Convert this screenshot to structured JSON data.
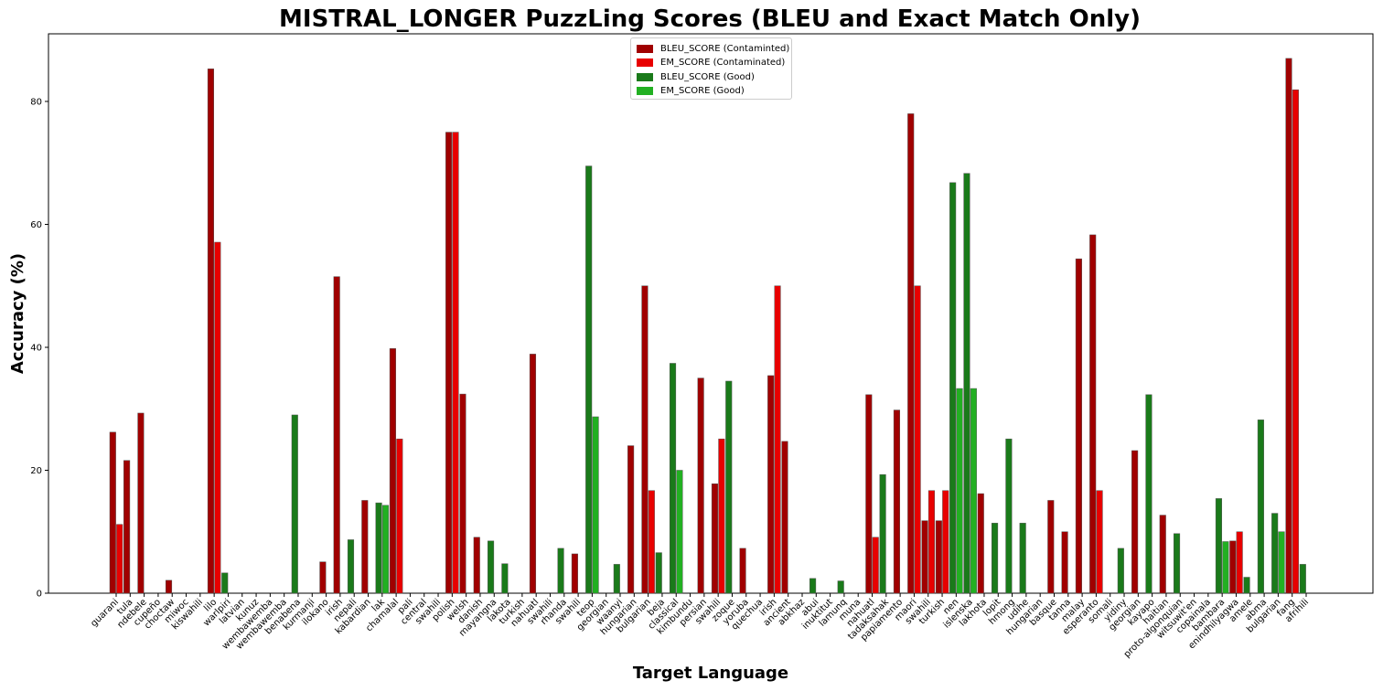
{
  "chart_data": {
    "type": "bar",
    "title": "MISTRAL_LONGER PuzzLing Scores (BLEU and Exact Match Only)",
    "xlabel": "Target Language",
    "ylabel": "Accuracy (%)",
    "ylim": [
      0,
      91
    ],
    "yticks": [
      0,
      20,
      40,
      60,
      80
    ],
    "grid": false,
    "legend_position": "top-center",
    "colors": {
      "bleu_contaminated": "#a00000",
      "em_contaminated": "#e80000",
      "bleu_good": "#1a7a1a",
      "em_good": "#22b022"
    },
    "legend": [
      {
        "label": "BLEU_SCORE (Contaminted)",
        "color": "#a00000"
      },
      {
        "label": "EM_SCORE (Contaminated)",
        "color": "#e80000"
      },
      {
        "label": "BLEU_SCORE (Good)",
        "color": "#1a7a1a"
      },
      {
        "label": "EM_SCORE (Good)",
        "color": "#22b022"
      }
    ],
    "categories": [
      {
        "label": "guarani",
        "status": "contaminated",
        "bleu": 26.2,
        "em": 11.2
      },
      {
        "label": "tula",
        "status": "contaminated",
        "bleu": 21.6,
        "em": 0
      },
      {
        "label": "ndebele",
        "status": "contaminated",
        "bleu": 29.3,
        "em": 0
      },
      {
        "label": "cupeño",
        "status": "contaminated",
        "bleu": 0,
        "em": 0
      },
      {
        "label": "choctaw",
        "status": "contaminated",
        "bleu": 2.1,
        "em": 0
      },
      {
        "label": "miwoc",
        "status": "contaminated",
        "bleu": 0,
        "em": 0
      },
      {
        "label": "kiswahili",
        "status": "contaminated",
        "bleu": 0,
        "em": 0
      },
      {
        "label": "lilo",
        "status": "contaminated",
        "bleu": 85.3,
        "em": 57.1
      },
      {
        "label": "warlpiri",
        "status": "good",
        "bleu": 3.3,
        "em": 0
      },
      {
        "label": "latvian",
        "status": "good",
        "bleu": 0,
        "em": 0
      },
      {
        "label": "kunuz",
        "status": "good",
        "bleu": 0,
        "em": 0
      },
      {
        "label": "wembawemba",
        "status": "good",
        "bleu": 0,
        "em": 0
      },
      {
        "label": "wembawemba",
        "status": "good",
        "bleu": 0,
        "em": 0
      },
      {
        "label": "benabena",
        "status": "good",
        "bleu": 29.0,
        "em": 0
      },
      {
        "label": "kurmanji",
        "status": "contaminated",
        "bleu": 0,
        "em": 0
      },
      {
        "label": "ilokano",
        "status": "contaminated",
        "bleu": 5.1,
        "em": 0
      },
      {
        "label": "irish",
        "status": "contaminated",
        "bleu": 51.5,
        "em": 0
      },
      {
        "label": "nepali",
        "status": "good",
        "bleu": 8.7,
        "em": 0
      },
      {
        "label": "kabardian",
        "status": "contaminated",
        "bleu": 15.1,
        "em": 0
      },
      {
        "label": "lak",
        "status": "good",
        "bleu": 14.7,
        "em": 14.3
      },
      {
        "label": "chamalal",
        "status": "contaminated",
        "bleu": 39.8,
        "em": 25.1
      },
      {
        "label": "pali",
        "status": "contaminated",
        "bleu": 0,
        "em": 0
      },
      {
        "label": "central",
        "status": "contaminated",
        "bleu": 0,
        "em": 0
      },
      {
        "label": "swahili",
        "status": "contaminated",
        "bleu": 0,
        "em": 0
      },
      {
        "label": "polish",
        "status": "contaminated",
        "bleu": 75.0,
        "em": 75.0
      },
      {
        "label": "welsh",
        "status": "contaminated",
        "bleu": 32.4,
        "em": 0
      },
      {
        "label": "danish",
        "status": "contaminated",
        "bleu": 9.1,
        "em": 0
      },
      {
        "label": "mayangna",
        "status": "good",
        "bleu": 8.5,
        "em": 0
      },
      {
        "label": "lakota",
        "status": "good",
        "bleu": 4.8,
        "em": 0
      },
      {
        "label": "turkish",
        "status": "contaminated",
        "bleu": 0,
        "em": 0
      },
      {
        "label": "nahuatl",
        "status": "contaminated",
        "bleu": 38.9,
        "em": 0
      },
      {
        "label": "swahili",
        "status": "contaminated",
        "bleu": 0,
        "em": 0
      },
      {
        "label": "rhanda",
        "status": "good",
        "bleu": 7.3,
        "em": 0
      },
      {
        "label": "swahili",
        "status": "contaminated",
        "bleu": 6.4,
        "em": 0
      },
      {
        "label": "teop",
        "status": "good",
        "bleu": 69.5,
        "em": 28.7
      },
      {
        "label": "georgian",
        "status": "good",
        "bleu": 0,
        "em": 0
      },
      {
        "label": "waanyi",
        "status": "good",
        "bleu": 4.7,
        "em": 0
      },
      {
        "label": "hungarian",
        "status": "contaminated",
        "bleu": 24.0,
        "em": 0
      },
      {
        "label": "bulgarian",
        "status": "contaminated",
        "bleu": 50.0,
        "em": 16.7
      },
      {
        "label": "beja",
        "status": "good",
        "bleu": 6.6,
        "em": 0
      },
      {
        "label": "classical",
        "status": "good",
        "bleu": 37.4,
        "em": 20.0
      },
      {
        "label": "kimbundu",
        "status": "contaminated",
        "bleu": 0,
        "em": 0
      },
      {
        "label": "persian",
        "status": "contaminated",
        "bleu": 35.0,
        "em": 0
      },
      {
        "label": "swahili",
        "status": "contaminated",
        "bleu": 17.8,
        "em": 25.1
      },
      {
        "label": "zoque",
        "status": "good",
        "bleu": 34.5,
        "em": 0
      },
      {
        "label": "yoruba",
        "status": "contaminated",
        "bleu": 7.3,
        "em": 0
      },
      {
        "label": "quechua",
        "status": "contaminated",
        "bleu": 0,
        "em": 0
      },
      {
        "label": "irish",
        "status": "contaminated",
        "bleu": 35.4,
        "em": 50.0
      },
      {
        "label": "ancient",
        "status": "contaminated",
        "bleu": 24.7,
        "em": 0
      },
      {
        "label": "abkhaz",
        "status": "good",
        "bleu": 0,
        "em": 0
      },
      {
        "label": "abui",
        "status": "good",
        "bleu": 2.4,
        "em": 0
      },
      {
        "label": "inuktitut",
        "status": "good",
        "bleu": 0,
        "em": 0
      },
      {
        "label": "lamunq",
        "status": "good",
        "bleu": 2.0,
        "em": 0
      },
      {
        "label": "muna",
        "status": "contaminated",
        "bleu": 0,
        "em": 0
      },
      {
        "label": "nahuatl",
        "status": "contaminated",
        "bleu": 32.3,
        "em": 9.1
      },
      {
        "label": "tadaksahak",
        "status": "good",
        "bleu": 19.3,
        "em": 0
      },
      {
        "label": "papiamento",
        "status": "contaminated",
        "bleu": 29.8,
        "em": 0
      },
      {
        "label": "maori",
        "status": "contaminated",
        "bleu": 78.0,
        "em": 50.0
      },
      {
        "label": "swahili",
        "status": "contaminated",
        "bleu": 11.8,
        "em": 16.7
      },
      {
        "label": "turkish",
        "status": "contaminated",
        "bleu": 11.8,
        "em": 16.7
      },
      {
        "label": "nen",
        "status": "good",
        "bleu": 66.8,
        "em": 33.3
      },
      {
        "label": "islenska",
        "status": "good",
        "bleu": 68.3,
        "em": 33.3
      },
      {
        "label": "lakhota",
        "status": "contaminated",
        "bleu": 16.2,
        "em": 0
      },
      {
        "label": "lopit",
        "status": "good",
        "bleu": 11.4,
        "em": 0
      },
      {
        "label": "hmong",
        "status": "good",
        "bleu": 25.1,
        "em": 0
      },
      {
        "label": "udihe",
        "status": "good",
        "bleu": 11.4,
        "em": 0
      },
      {
        "label": "hungarian",
        "status": "good",
        "bleu": 0,
        "em": 0
      },
      {
        "label": "basque",
        "status": "contaminated",
        "bleu": 15.1,
        "em": 0
      },
      {
        "label": "tanna",
        "status": "contaminated",
        "bleu": 10.0,
        "em": 0
      },
      {
        "label": "malay",
        "status": "contaminated",
        "bleu": 54.4,
        "em": 0
      },
      {
        "label": "esperanto",
        "status": "contaminated",
        "bleu": 58.3,
        "em": 16.7
      },
      {
        "label": "somali",
        "status": "good",
        "bleu": 0,
        "em": 0
      },
      {
        "label": "yidiny",
        "status": "good",
        "bleu": 7.3,
        "em": 0
      },
      {
        "label": "georgian",
        "status": "contaminated",
        "bleu": 23.2,
        "em": 0
      },
      {
        "label": "kayapo",
        "status": "good",
        "bleu": 32.3,
        "em": 0
      },
      {
        "label": "haitian",
        "status": "contaminated",
        "bleu": 12.7,
        "em": 0
      },
      {
        "label": "proto-algonquian",
        "status": "good",
        "bleu": 9.7,
        "em": 0
      },
      {
        "label": "witsuwit'en",
        "status": "good",
        "bleu": 0,
        "em": 0
      },
      {
        "label": "copainala",
        "status": "good",
        "bleu": 0,
        "em": 0
      },
      {
        "label": "bambara",
        "status": "good",
        "bleu": 15.4,
        "em": 8.4
      },
      {
        "label": "enindhilyagwa",
        "status": "contaminated",
        "bleu": 8.5,
        "em": 10.0
      },
      {
        "label": "amele",
        "status": "good",
        "bleu": 2.6,
        "em": 0
      },
      {
        "label": "abma",
        "status": "good",
        "bleu": 28.2,
        "em": 0
      },
      {
        "label": "bulgarian",
        "status": "good",
        "bleu": 13.0,
        "em": 10.0
      },
      {
        "label": "fang",
        "status": "contaminated",
        "bleu": 87.0,
        "em": 81.9
      },
      {
        "label": "afrihili",
        "status": "good",
        "bleu": 4.7,
        "em": 0
      }
    ]
  }
}
